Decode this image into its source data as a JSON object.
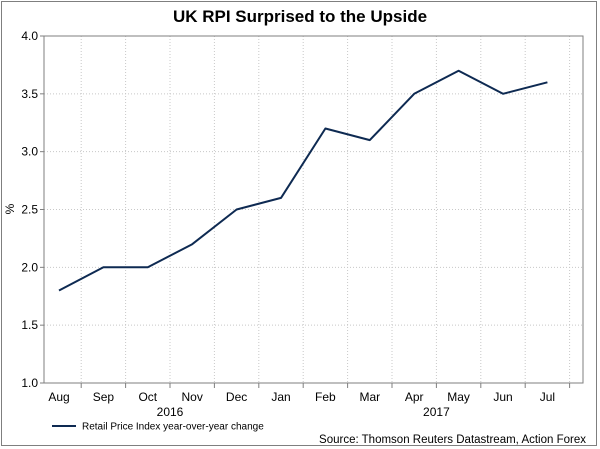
{
  "chart_data": {
    "type": "line",
    "title": "UK RPI Surprised to the Upside",
    "ylabel": "%",
    "xlabel": "",
    "ylim": [
      1.0,
      4.0
    ],
    "yticks": [
      "1.0",
      "1.5",
      "2.0",
      "2.5",
      "3.0",
      "3.5",
      "4.0"
    ],
    "categories": [
      "Aug",
      "Sep",
      "Oct",
      "Nov",
      "Dec",
      "Jan",
      "Feb",
      "Mar",
      "Apr",
      "May",
      "Jun",
      "Jul"
    ],
    "year_labels": [
      {
        "label": "2016",
        "after_category": "Oct"
      },
      {
        "label": "2017",
        "after_category": "Apr"
      }
    ],
    "grid": true,
    "legend_position": "bottom-left",
    "series": [
      {
        "name": "Retail Price Index year-over-year change",
        "color": "#0e2a52",
        "values": [
          1.8,
          2.0,
          2.0,
          2.2,
          2.5,
          2.6,
          3.2,
          3.1,
          3.5,
          3.7,
          3.5,
          3.6
        ]
      }
    ],
    "source": "Source: Thomson Reuters Datastream, Action Forex"
  }
}
